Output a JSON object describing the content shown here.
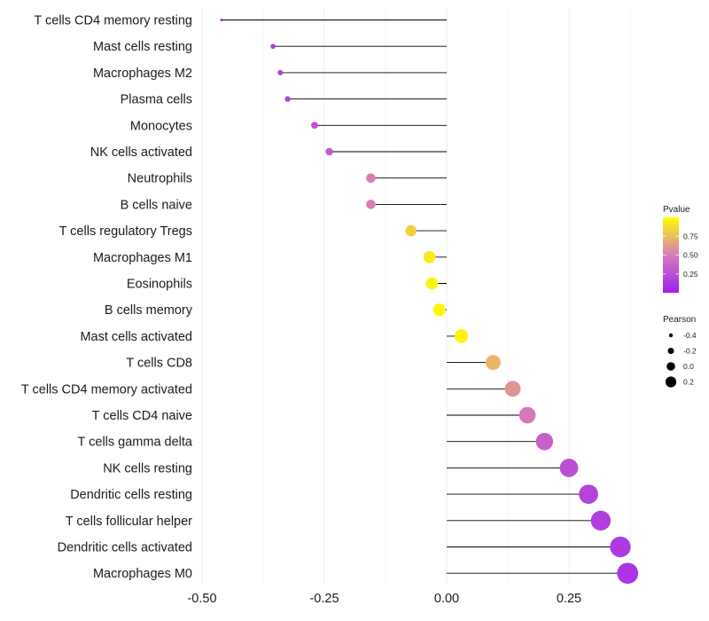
{
  "chart_data": {
    "type": "lollipop",
    "title": "",
    "xlabel": "",
    "ylabel": "",
    "xlim": [
      -0.5,
      0.4
    ],
    "x_ticks": [
      -0.5,
      -0.25,
      0.0,
      0.25
    ],
    "x_tick_labels": [
      "-0.50",
      "-0.25",
      "0.00",
      "0.25"
    ],
    "grid": true,
    "legend_position": "right",
    "categories": [
      "T cells CD4 memory resting",
      "Mast cells resting",
      "Macrophages M2",
      "Plasma cells",
      "Monocytes",
      "NK cells activated",
      "Neutrophils",
      "B cells naive",
      "T cells regulatory  Tregs",
      "Macrophages M1",
      "Eosinophils",
      "B cells memory",
      "Mast cells activated",
      "T cells CD8",
      "T cells CD4 memory activated",
      "T cells CD4 naive",
      "T cells gamma delta",
      "NK cells resting",
      "Dendritic cells resting",
      "T cells follicular helper",
      "Dendritic cells activated",
      "Macrophages M0"
    ],
    "pearson": [
      -0.46,
      -0.355,
      -0.34,
      -0.325,
      -0.27,
      -0.24,
      -0.155,
      -0.155,
      -0.073,
      -0.035,
      -0.03,
      -0.015,
      0.03,
      0.095,
      0.135,
      0.165,
      0.2,
      0.25,
      0.29,
      0.315,
      0.355,
      0.37
    ],
    "pvalue": [
      0.05,
      0.15,
      0.16,
      0.18,
      0.28,
      0.32,
      0.52,
      0.52,
      0.82,
      0.92,
      0.95,
      0.97,
      0.96,
      0.72,
      0.6,
      0.48,
      0.35,
      0.25,
      0.2,
      0.16,
      0.13,
      0.11
    ],
    "color_legend": {
      "title": "Pvalue",
      "ticks": [
        0.25,
        0.5,
        0.75
      ],
      "tick_labels": [
        "0.25",
        "0.50",
        "0.75"
      ],
      "range": [
        0.0,
        1.0
      ],
      "gradient_low": "#A020F0",
      "gradient_mid": "#D77BB8",
      "gradient_high": "#FFFF00"
    },
    "size_legend": {
      "title": "Pearson",
      "values": [
        -0.4,
        -0.2,
        0.0,
        0.2
      ],
      "labels": [
        "-0.4",
        "-0.2",
        "0.0",
        "0.2"
      ]
    }
  }
}
